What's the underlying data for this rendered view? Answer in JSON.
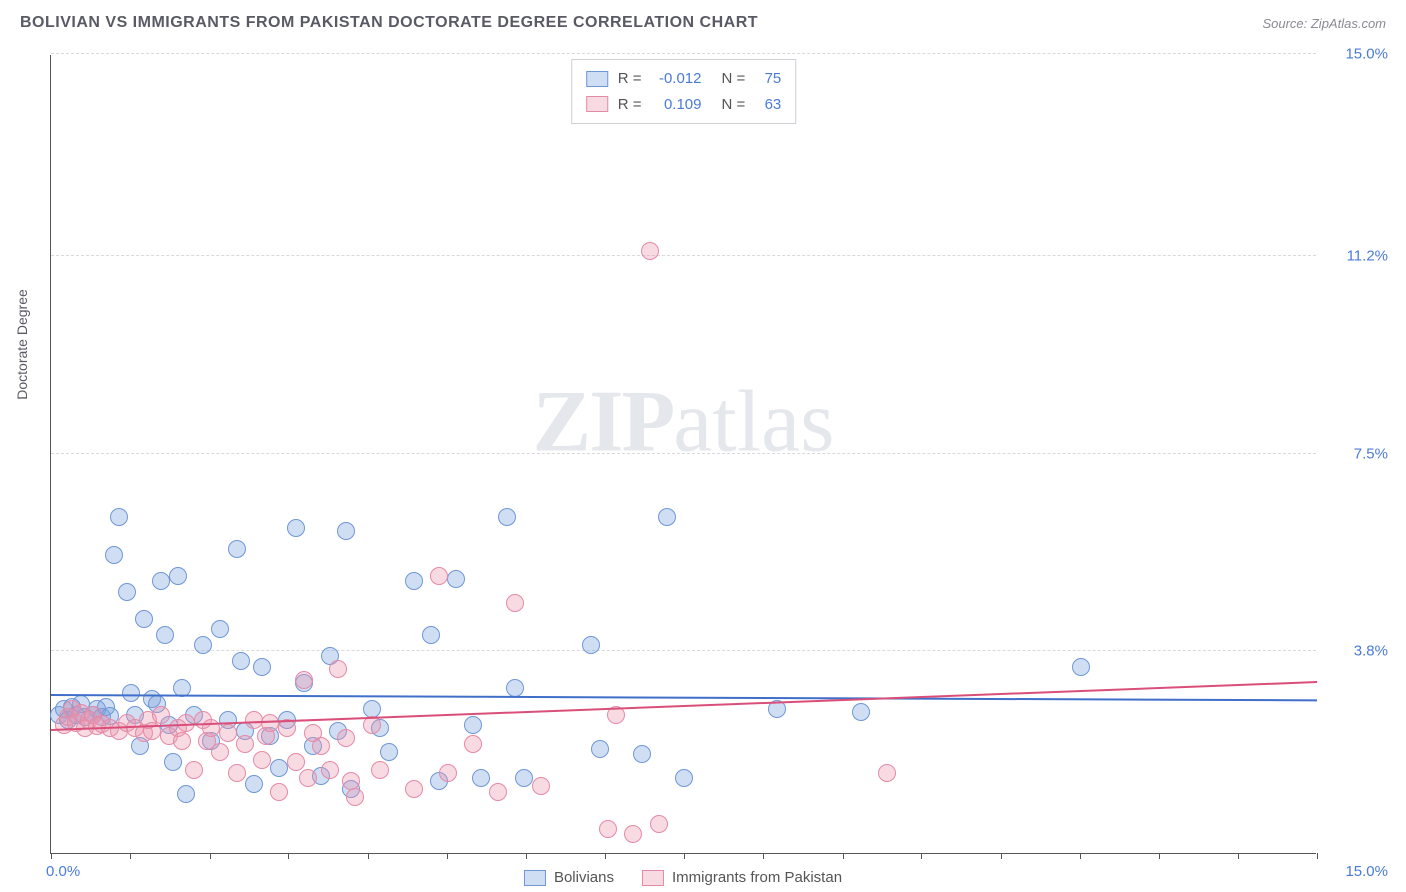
{
  "title": "BOLIVIAN VS IMMIGRANTS FROM PAKISTAN DOCTORATE DEGREE CORRELATION CHART",
  "source": "Source: ZipAtlas.com",
  "ylabel": "Doctorate Degree",
  "watermark_a": "ZIP",
  "watermark_b": "atlas",
  "chart": {
    "type": "scatter",
    "xlim": [
      0,
      15
    ],
    "ylim": [
      0,
      15
    ],
    "x_tick_left": "0.0%",
    "x_tick_right": "15.0%",
    "y_ticks": [
      {
        "v": 3.8,
        "label": "3.8%"
      },
      {
        "v": 7.5,
        "label": "7.5%"
      },
      {
        "v": 11.2,
        "label": "11.2%"
      },
      {
        "v": 15.0,
        "label": "15.0%"
      }
    ],
    "x_minor_ticks": [
      0,
      0.94,
      1.88,
      2.81,
      3.75,
      4.69,
      5.63,
      6.56,
      7.5,
      8.44,
      9.38,
      10.31,
      11.25,
      12.19,
      13.13,
      14.06,
      15
    ],
    "marker_radius": 9,
    "grid_color": "#d8d8dd",
    "background_color": "#ffffff",
    "series": [
      {
        "key": "bolivians",
        "label": "Bolivians",
        "fill": "rgba(120,160,220,0.35)",
        "stroke": "#6f97d6",
        "trend_color": "#3f6fc8",
        "R": "-0.012",
        "N": "75",
        "trend": {
          "y_at_x0": 2.95,
          "y_at_xmax": 2.85
        },
        "points": [
          [
            0.1,
            2.6
          ],
          [
            0.15,
            2.7
          ],
          [
            0.2,
            2.5
          ],
          [
            0.25,
            2.75
          ],
          [
            0.3,
            2.6
          ],
          [
            0.35,
            2.8
          ],
          [
            0.4,
            2.55
          ],
          [
            0.5,
            2.6
          ],
          [
            0.55,
            2.7
          ],
          [
            0.6,
            2.55
          ],
          [
            0.65,
            2.75
          ],
          [
            0.7,
            2.58
          ],
          [
            0.75,
            5.6
          ],
          [
            0.8,
            6.3
          ],
          [
            0.9,
            4.9
          ],
          [
            0.95,
            3.0
          ],
          [
            1.0,
            2.6
          ],
          [
            1.05,
            2.0
          ],
          [
            1.1,
            4.4
          ],
          [
            1.2,
            2.9
          ],
          [
            1.25,
            2.8
          ],
          [
            1.3,
            5.1
          ],
          [
            1.35,
            4.1
          ],
          [
            1.4,
            2.4
          ],
          [
            1.45,
            1.7
          ],
          [
            1.5,
            5.2
          ],
          [
            1.55,
            3.1
          ],
          [
            1.6,
            1.1
          ],
          [
            1.7,
            2.6
          ],
          [
            1.8,
            3.9
          ],
          [
            1.9,
            2.1
          ],
          [
            2.0,
            4.2
          ],
          [
            2.1,
            2.5
          ],
          [
            2.2,
            5.7
          ],
          [
            2.25,
            3.6
          ],
          [
            2.3,
            2.3
          ],
          [
            2.4,
            1.3
          ],
          [
            2.5,
            3.5
          ],
          [
            2.6,
            2.2
          ],
          [
            2.7,
            1.6
          ],
          [
            2.8,
            2.5
          ],
          [
            2.9,
            6.1
          ],
          [
            3.0,
            3.2
          ],
          [
            3.1,
            2.0
          ],
          [
            3.2,
            1.45
          ],
          [
            3.3,
            3.7
          ],
          [
            3.4,
            2.3
          ],
          [
            3.5,
            6.05
          ],
          [
            3.55,
            1.2
          ],
          [
            3.8,
            2.7
          ],
          [
            3.9,
            2.35
          ],
          [
            4.0,
            1.9
          ],
          [
            4.3,
            5.1
          ],
          [
            4.5,
            4.1
          ],
          [
            4.6,
            1.35
          ],
          [
            4.8,
            5.15
          ],
          [
            5.0,
            2.4
          ],
          [
            5.1,
            1.4
          ],
          [
            5.4,
            6.3
          ],
          [
            5.5,
            3.1
          ],
          [
            5.6,
            1.4
          ],
          [
            6.4,
            3.9
          ],
          [
            6.5,
            1.95
          ],
          [
            7.0,
            1.85
          ],
          [
            7.3,
            6.3
          ],
          [
            7.5,
            1.4
          ],
          [
            8.6,
            2.7
          ],
          [
            9.6,
            2.65
          ],
          [
            12.2,
            3.5
          ]
        ]
      },
      {
        "key": "pakistan",
        "label": "Immigrants from Pakistan",
        "fill": "rgba(235,150,175,0.35)",
        "stroke": "#e58aa6",
        "trend_color": "#d94f7a",
        "R": "0.109",
        "N": "63",
        "trend": {
          "y_at_x0": 2.3,
          "y_at_xmax": 3.2
        },
        "points": [
          [
            0.15,
            2.4
          ],
          [
            0.2,
            2.55
          ],
          [
            0.25,
            2.7
          ],
          [
            0.3,
            2.45
          ],
          [
            0.35,
            2.62
          ],
          [
            0.4,
            2.35
          ],
          [
            0.45,
            2.5
          ],
          [
            0.5,
            2.6
          ],
          [
            0.55,
            2.38
          ],
          [
            0.6,
            2.42
          ],
          [
            0.7,
            2.35
          ],
          [
            0.8,
            2.3
          ],
          [
            0.9,
            2.45
          ],
          [
            1.0,
            2.35
          ],
          [
            1.1,
            2.25
          ],
          [
            1.15,
            2.5
          ],
          [
            1.2,
            2.3
          ],
          [
            1.3,
            2.6
          ],
          [
            1.4,
            2.2
          ],
          [
            1.5,
            2.35
          ],
          [
            1.55,
            2.1
          ],
          [
            1.6,
            2.45
          ],
          [
            1.7,
            1.55
          ],
          [
            1.8,
            2.5
          ],
          [
            1.85,
            2.1
          ],
          [
            1.9,
            2.35
          ],
          [
            2.0,
            1.9
          ],
          [
            2.1,
            2.25
          ],
          [
            2.2,
            1.5
          ],
          [
            2.3,
            2.05
          ],
          [
            2.4,
            2.5
          ],
          [
            2.5,
            1.75
          ],
          [
            2.55,
            2.2
          ],
          [
            2.6,
            2.45
          ],
          [
            2.7,
            1.15
          ],
          [
            2.8,
            2.35
          ],
          [
            2.9,
            1.7
          ],
          [
            3.0,
            3.25
          ],
          [
            3.05,
            1.4
          ],
          [
            3.1,
            2.25
          ],
          [
            3.2,
            2.0
          ],
          [
            3.3,
            1.55
          ],
          [
            3.4,
            3.45
          ],
          [
            3.5,
            2.15
          ],
          [
            3.55,
            1.35
          ],
          [
            3.6,
            1.05
          ],
          [
            3.8,
            2.4
          ],
          [
            3.9,
            1.55
          ],
          [
            4.3,
            1.2
          ],
          [
            4.6,
            5.2
          ],
          [
            4.7,
            1.5
          ],
          [
            5.0,
            2.05
          ],
          [
            5.3,
            1.15
          ],
          [
            5.5,
            4.7
          ],
          [
            5.8,
            1.25
          ],
          [
            6.6,
            0.45
          ],
          [
            6.7,
            2.6
          ],
          [
            6.9,
            0.35
          ],
          [
            7.1,
            11.3
          ],
          [
            7.2,
            0.55
          ],
          [
            9.9,
            1.5
          ]
        ]
      }
    ]
  },
  "legend_top_labels": {
    "R": "R =",
    "N": "N ="
  }
}
